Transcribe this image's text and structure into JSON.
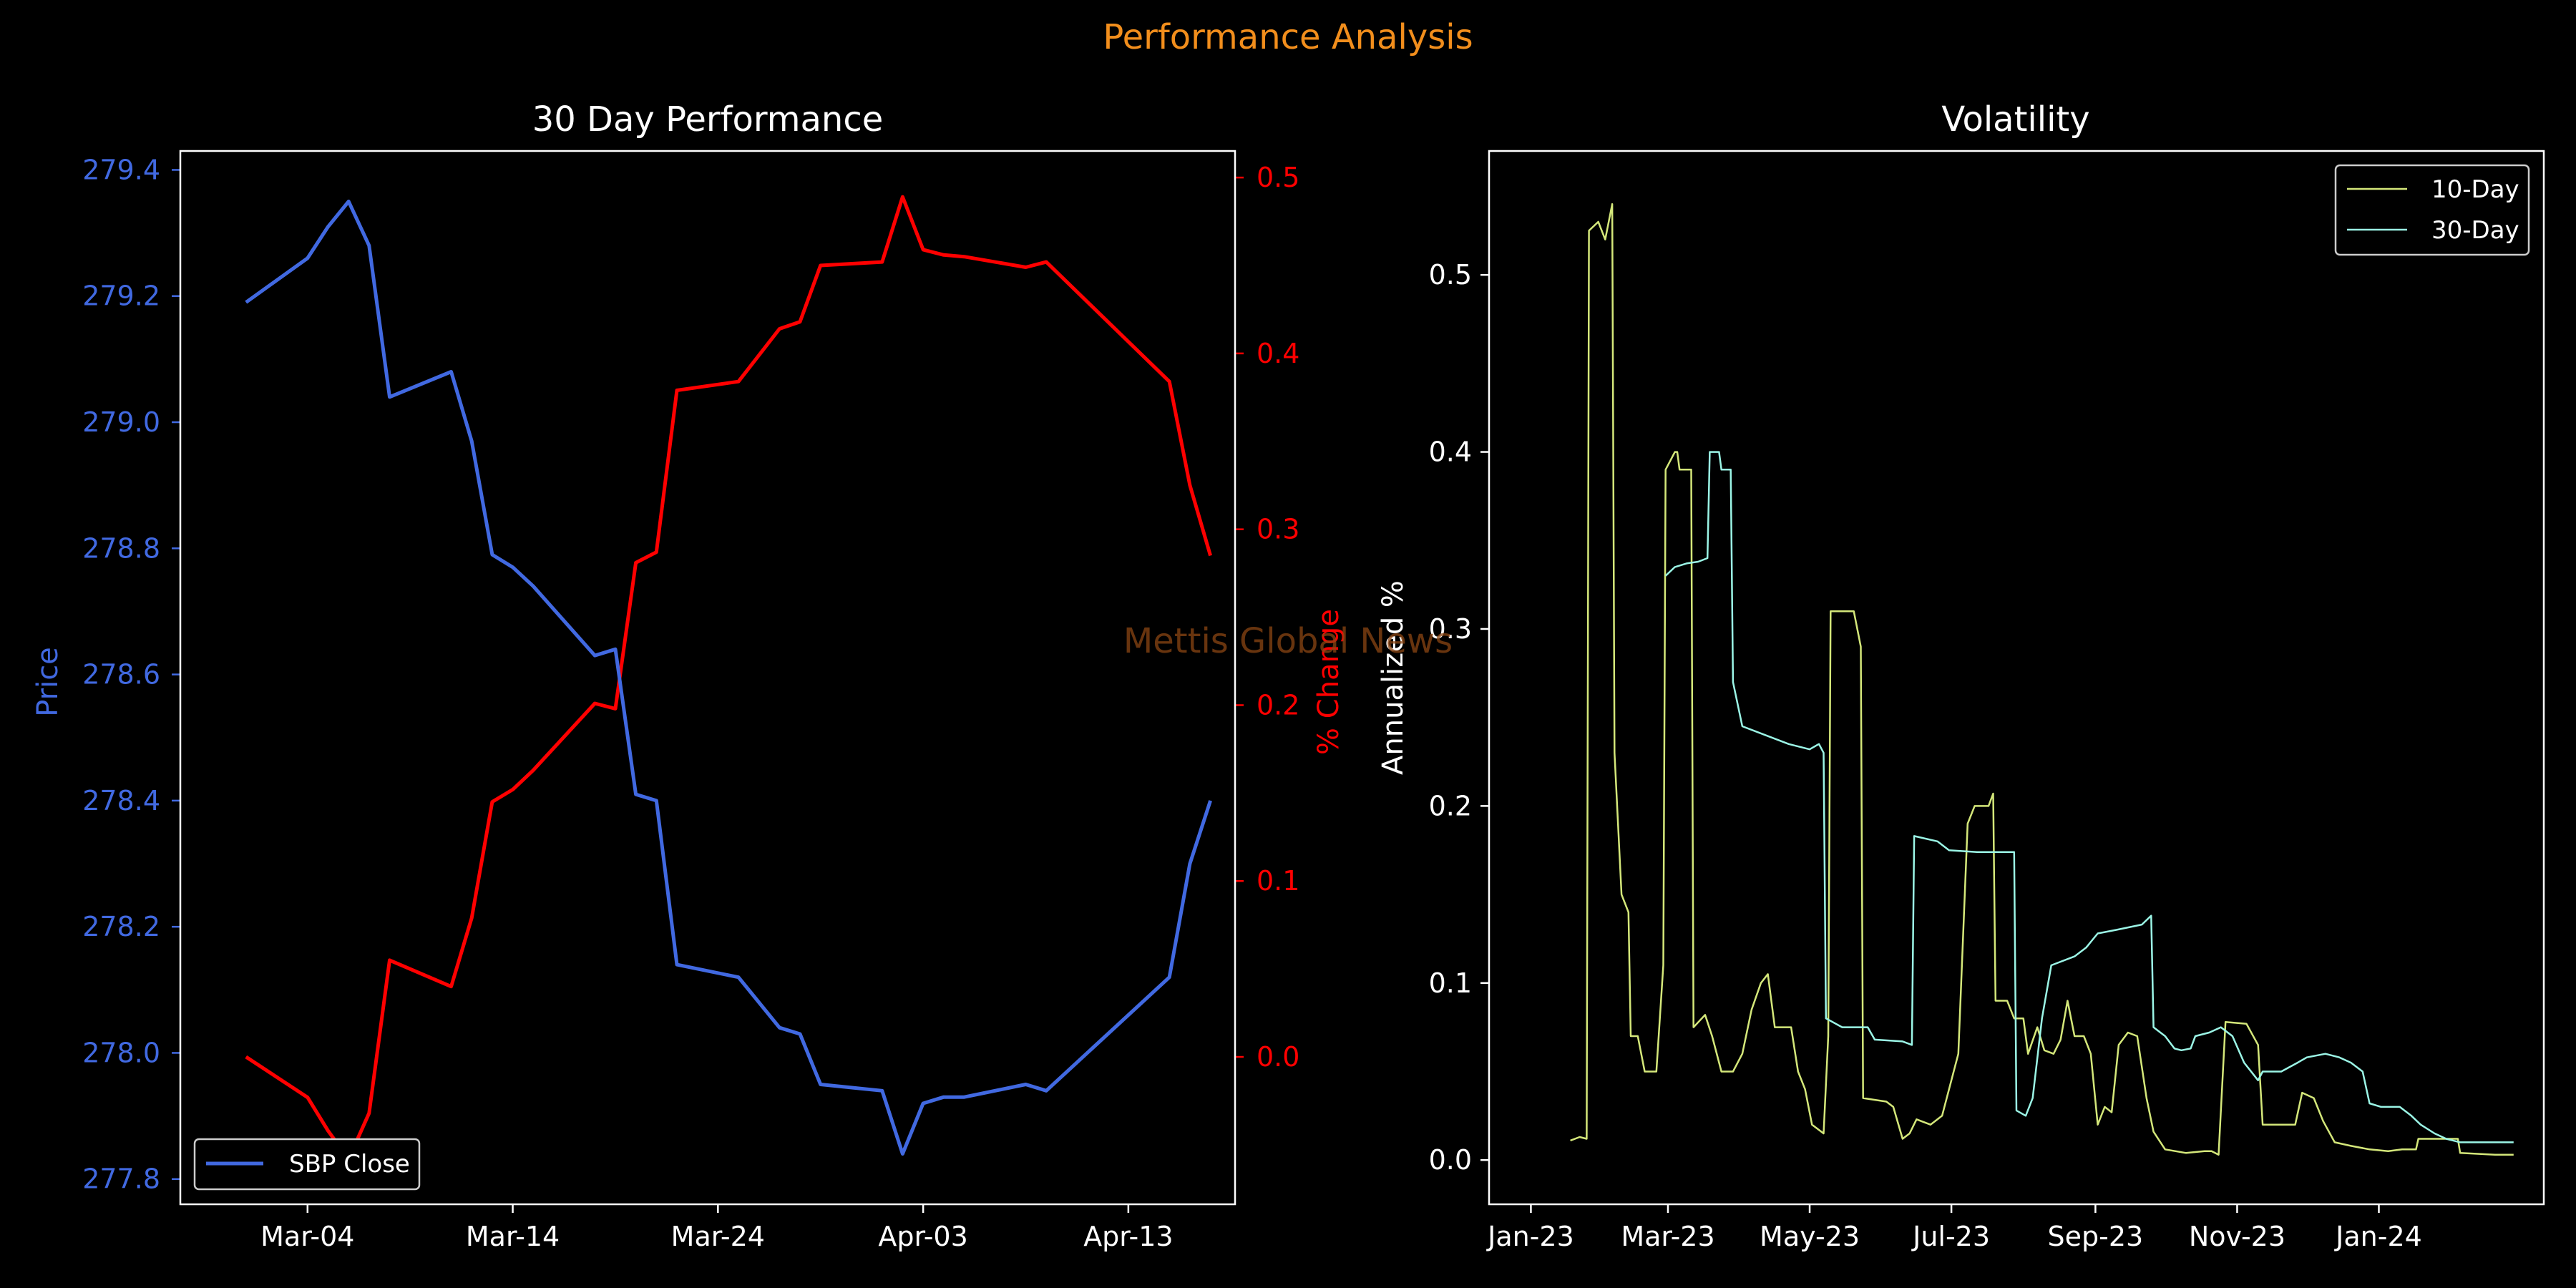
{
  "suptitle": "Performance Analysis",
  "watermark": "Mettis Global News",
  "colors": {
    "background": "#000000",
    "suptitle": "#F28E1C",
    "price": "#4169E1",
    "change": "#FF0000",
    "vol10": "#D4E77A",
    "vol30": "#9BF5E6",
    "axis": "#FFFFFF",
    "watermark": "#8B4513"
  },
  "chart_data": [
    {
      "type": "line",
      "title": "30 Day Performance",
      "ylabel": "Price",
      "y2label": "% Change",
      "legend": {
        "position": "lower-left",
        "entries": [
          "SBP Close"
        ]
      },
      "x_ticks": [
        "Mar-04",
        "Mar-14",
        "Mar-24",
        "Apr-03",
        "Apr-13"
      ],
      "x_tick_days": [
        4,
        14,
        24,
        34,
        44
      ],
      "xlim_days": [
        -2.2,
        49.2
      ],
      "ylim": [
        277.76,
        279.43
      ],
      "y_ticks": [
        "277.8",
        "278.0",
        "278.2",
        "278.4",
        "278.6",
        "278.8",
        "279.0",
        "279.2",
        "279.4"
      ],
      "y2lim": [
        -0.0838,
        0.5151
      ],
      "y2_ticks": [
        "0.0",
        "0.1",
        "0.2",
        "0.3",
        "0.4",
        "0.5"
      ],
      "series": [
        {
          "name": "SBP Close",
          "axis": "left",
          "x_days": [
            1,
            4,
            5,
            6,
            7,
            8,
            11,
            12,
            13,
            14,
            15,
            18,
            19,
            20,
            21,
            22,
            25,
            26,
            27,
            28,
            29,
            32,
            33,
            34,
            35,
            36,
            39,
            40,
            46,
            47,
            48
          ],
          "values": [
            279.19,
            279.26,
            279.31,
            279.35,
            279.28,
            279.04,
            279.08,
            278.97,
            278.79,
            278.77,
            278.74,
            278.63,
            278.64,
            278.41,
            278.4,
            278.14,
            278.12,
            278.08,
            278.04,
            278.03,
            277.95,
            277.94,
            277.84,
            277.92,
            277.93,
            277.93,
            277.95,
            277.94,
            278.12,
            278.3,
            278.4
          ]
        },
        {
          "name": "% Change",
          "axis": "right",
          "x_days": [
            1,
            4,
            5,
            6,
            7,
            8,
            11,
            12,
            13,
            14,
            15,
            18,
            19,
            20,
            21,
            22,
            25,
            26,
            27,
            28,
            29,
            32,
            33,
            34,
            35,
            36,
            39,
            40,
            46,
            47,
            48
          ],
          "values": [
            0.0,
            -0.023,
            -0.042,
            -0.058,
            -0.032,
            0.055,
            0.04,
            0.079,
            0.145,
            0.152,
            0.163,
            0.201,
            0.198,
            0.281,
            0.287,
            0.379,
            0.384,
            0.399,
            0.414,
            0.418,
            0.45,
            0.452,
            0.489,
            0.459,
            0.456,
            0.455,
            0.449,
            0.452,
            0.384,
            0.325,
            0.285
          ]
        }
      ]
    },
    {
      "type": "line",
      "title": "Volatility",
      "ylabel": "Annualized %",
      "legend": {
        "position": "top-right",
        "entries": [
          "10-Day",
          "30-Day"
        ]
      },
      "x_ticks": [
        "Jan-23",
        "Mar-23",
        "May-23",
        "Jul-23",
        "Sep-23",
        "Nov-23",
        "Jan-24"
      ],
      "x_tick_dates": [
        "2023-01-01",
        "2023-03-01",
        "2023-05-01",
        "2023-07-01",
        "2023-09-01",
        "2023-11-01",
        "2024-01-01"
      ],
      "xlim_dates": [
        "2022-12-14",
        "2024-03-12"
      ],
      "ylim": [
        -0.025,
        0.57
      ],
      "y_ticks": [
        "0.0",
        "0.1",
        "0.2",
        "0.3",
        "0.4",
        "0.5"
      ],
      "series": [
        {
          "name": "10-Day",
          "points": [
            [
              "2023-01-18",
              0.011
            ],
            [
              "2023-01-22",
              0.013
            ],
            [
              "2023-01-25",
              0.012
            ],
            [
              "2023-01-26",
              0.525
            ],
            [
              "2023-01-30",
              0.53
            ],
            [
              "2023-02-02",
              0.52
            ],
            [
              "2023-02-05",
              0.54
            ],
            [
              "2023-02-06",
              0.23
            ],
            [
              "2023-02-09",
              0.15
            ],
            [
              "2023-02-12",
              0.14
            ],
            [
              "2023-02-13",
              0.07
            ],
            [
              "2023-02-16",
              0.07
            ],
            [
              "2023-02-19",
              0.05
            ],
            [
              "2023-02-24",
              0.05
            ],
            [
              "2023-02-27",
              0.11
            ],
            [
              "2023-02-28",
              0.39
            ],
            [
              "2023-03-04",
              0.4
            ],
            [
              "2023-03-05",
              0.4
            ],
            [
              "2023-03-06",
              0.39
            ],
            [
              "2023-03-11",
              0.39
            ],
            [
              "2023-03-12",
              0.075
            ],
            [
              "2023-03-17",
              0.082
            ],
            [
              "2023-03-20",
              0.07
            ],
            [
              "2023-03-24",
              0.05
            ],
            [
              "2023-03-29",
              0.05
            ],
            [
              "2023-04-02",
              0.06
            ],
            [
              "2023-04-06",
              0.085
            ],
            [
              "2023-04-10",
              0.1
            ],
            [
              "2023-04-13",
              0.105
            ],
            [
              "2023-04-16",
              0.075
            ],
            [
              "2023-04-23",
              0.075
            ],
            [
              "2023-04-26",
              0.05
            ],
            [
              "2023-04-29",
              0.04
            ],
            [
              "2023-05-02",
              0.02
            ],
            [
              "2023-05-07",
              0.015
            ],
            [
              "2023-05-09",
              0.07
            ],
            [
              "2023-05-10",
              0.31
            ],
            [
              "2023-05-20",
              0.31
            ],
            [
              "2023-05-23",
              0.29
            ],
            [
              "2023-05-24",
              0.035
            ],
            [
              "2023-06-03",
              0.033
            ],
            [
              "2023-06-06",
              0.03
            ],
            [
              "2023-06-10",
              0.012
            ],
            [
              "2023-06-13",
              0.015
            ],
            [
              "2023-06-16",
              0.023
            ],
            [
              "2023-06-22",
              0.02
            ],
            [
              "2023-06-27",
              0.025
            ],
            [
              "2023-07-04",
              0.06
            ],
            [
              "2023-07-08",
              0.19
            ],
            [
              "2023-07-11",
              0.2
            ],
            [
              "2023-07-17",
              0.2
            ],
            [
              "2023-07-19",
              0.207
            ],
            [
              "2023-07-20",
              0.09
            ],
            [
              "2023-07-25",
              0.09
            ],
            [
              "2023-07-28",
              0.08
            ],
            [
              "2023-08-01",
              0.08
            ],
            [
              "2023-08-03",
              0.06
            ],
            [
              "2023-08-07",
              0.075
            ],
            [
              "2023-08-10",
              0.062
            ],
            [
              "2023-08-14",
              0.06
            ],
            [
              "2023-08-17",
              0.068
            ],
            [
              "2023-08-20",
              0.09
            ],
            [
              "2023-08-23",
              0.07
            ],
            [
              "2023-08-27",
              0.07
            ],
            [
              "2023-08-30",
              0.06
            ],
            [
              "2023-09-02",
              0.02
            ],
            [
              "2023-09-05",
              0.03
            ],
            [
              "2023-09-08",
              0.027
            ],
            [
              "2023-09-11",
              0.065
            ],
            [
              "2023-09-15",
              0.072
            ],
            [
              "2023-09-19",
              0.07
            ],
            [
              "2023-09-23",
              0.035
            ],
            [
              "2023-09-26",
              0.016
            ],
            [
              "2023-10-01",
              0.006
            ],
            [
              "2023-10-10",
              0.004
            ],
            [
              "2023-10-18",
              0.005
            ],
            [
              "2023-10-21",
              0.005
            ],
            [
              "2023-10-24",
              0.003
            ],
            [
              "2023-10-27",
              0.078
            ],
            [
              "2023-11-05",
              0.077
            ],
            [
              "2023-11-10",
              0.065
            ],
            [
              "2023-11-12",
              0.02
            ],
            [
              "2023-11-20",
              0.02
            ],
            [
              "2023-11-26",
              0.02
            ],
            [
              "2023-11-29",
              0.038
            ],
            [
              "2023-12-04",
              0.035
            ],
            [
              "2023-12-08",
              0.022
            ],
            [
              "2023-12-13",
              0.01
            ],
            [
              "2023-12-20",
              0.008
            ],
            [
              "2023-12-28",
              0.006
            ],
            [
              "2024-01-05",
              0.005
            ],
            [
              "2024-01-11",
              0.006
            ],
            [
              "2024-01-17",
              0.006
            ],
            [
              "2024-01-18",
              0.012
            ],
            [
              "2024-02-04",
              0.012
            ],
            [
              "2024-02-05",
              0.004
            ],
            [
              "2024-02-20",
              0.003
            ],
            [
              "2024-02-28",
              0.003
            ]
          ]
        },
        {
          "name": "30-Day",
          "points": [
            [
              "2023-02-28",
              0.33
            ],
            [
              "2023-03-04",
              0.335
            ],
            [
              "2023-03-09",
              0.337
            ],
            [
              "2023-03-14",
              0.338
            ],
            [
              "2023-03-18",
              0.34
            ],
            [
              "2023-03-19",
              0.4
            ],
            [
              "2023-03-23",
              0.4
            ],
            [
              "2023-03-24",
              0.39
            ],
            [
              "2023-03-28",
              0.39
            ],
            [
              "2023-03-29",
              0.27
            ],
            [
              "2023-04-02",
              0.245
            ],
            [
              "2023-04-12",
              0.24
            ],
            [
              "2023-04-22",
              0.235
            ],
            [
              "2023-05-01",
              0.232
            ],
            [
              "2023-05-05",
              0.235
            ],
            [
              "2023-05-07",
              0.23
            ],
            [
              "2023-05-08",
              0.08
            ],
            [
              "2023-05-15",
              0.075
            ],
            [
              "2023-05-26",
              0.075
            ],
            [
              "2023-05-29",
              0.068
            ],
            [
              "2023-06-10",
              0.067
            ],
            [
              "2023-06-14",
              0.065
            ],
            [
              "2023-06-15",
              0.183
            ],
            [
              "2023-06-25",
              0.18
            ],
            [
              "2023-06-30",
              0.175
            ],
            [
              "2023-07-12",
              0.174
            ],
            [
              "2023-07-28",
              0.174
            ],
            [
              "2023-07-29",
              0.028
            ],
            [
              "2023-08-02",
              0.025
            ],
            [
              "2023-08-05",
              0.035
            ],
            [
              "2023-08-09",
              0.08
            ],
            [
              "2023-08-13",
              0.11
            ],
            [
              "2023-08-23",
              0.115
            ],
            [
              "2023-08-28",
              0.12
            ],
            [
              "2023-09-02",
              0.128
            ],
            [
              "2023-09-10",
              0.13
            ],
            [
              "2023-09-21",
              0.133
            ],
            [
              "2023-09-25",
              0.138
            ],
            [
              "2023-09-26",
              0.075
            ],
            [
              "2023-10-01",
              0.07
            ],
            [
              "2023-10-05",
              0.063
            ],
            [
              "2023-10-08",
              0.062
            ],
            [
              "2023-10-12",
              0.063
            ],
            [
              "2023-10-14",
              0.07
            ],
            [
              "2023-10-20",
              0.072
            ],
            [
              "2023-10-25",
              0.075
            ],
            [
              "2023-10-30",
              0.07
            ],
            [
              "2023-11-04",
              0.055
            ],
            [
              "2023-11-10",
              0.045
            ],
            [
              "2023-11-12",
              0.05
            ],
            [
              "2023-11-20",
              0.05
            ],
            [
              "2023-11-27",
              0.055
            ],
            [
              "2023-12-01",
              0.058
            ],
            [
              "2023-12-09",
              0.06
            ],
            [
              "2023-12-15",
              0.058
            ],
            [
              "2023-12-20",
              0.055
            ],
            [
              "2023-12-25",
              0.05
            ],
            [
              "2023-12-28",
              0.032
            ],
            [
              "2024-01-02",
              0.03
            ],
            [
              "2024-01-10",
              0.03
            ],
            [
              "2024-01-15",
              0.025
            ],
            [
              "2024-01-19",
              0.02
            ],
            [
              "2024-01-25",
              0.015
            ],
            [
              "2024-01-30",
              0.012
            ],
            [
              "2024-02-05",
              0.01
            ],
            [
              "2024-02-12",
              0.01
            ],
            [
              "2024-02-28",
              0.01
            ]
          ]
        }
      ]
    }
  ]
}
